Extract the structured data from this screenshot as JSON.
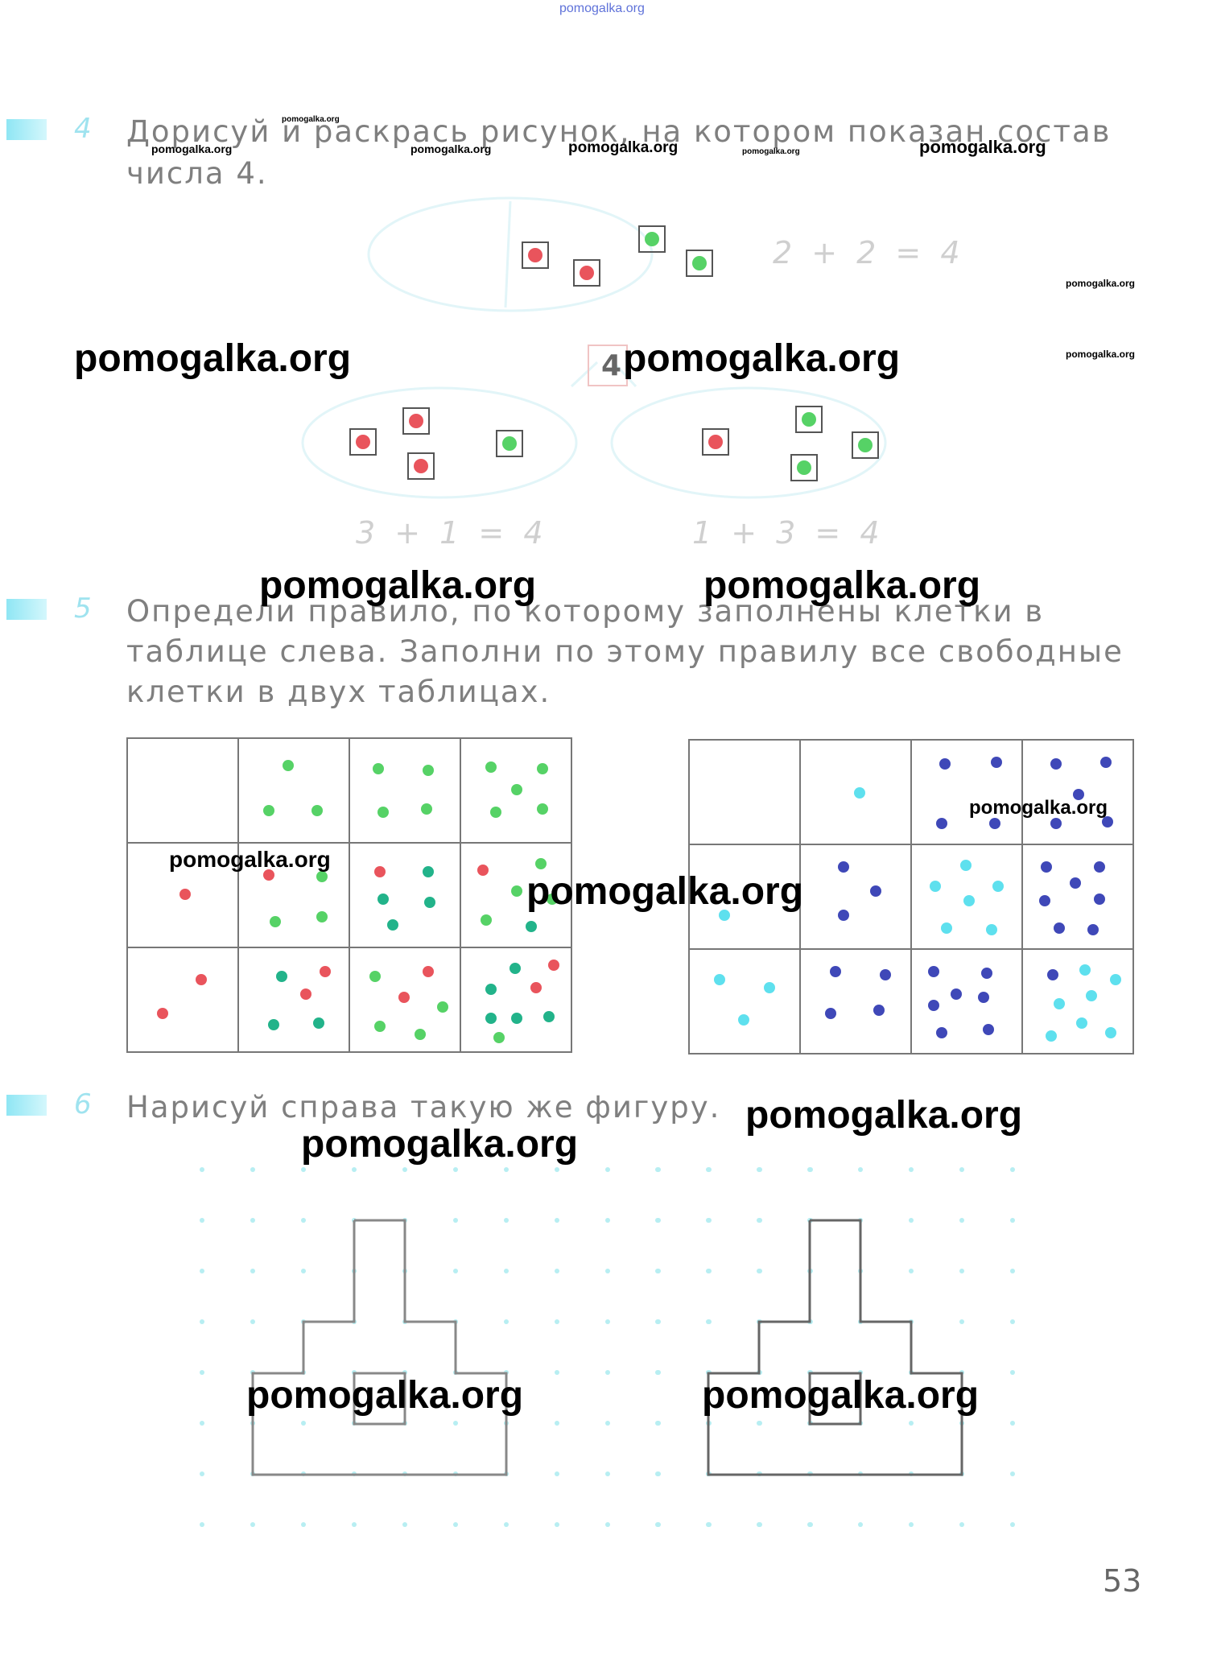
{
  "header": {
    "watermark": "pomogalka.org"
  },
  "task4": {
    "number": "4",
    "line1": "Дорисуй  и  раскрась  рисунок,  на  котором  показан  состав",
    "line2": "числа  4.",
    "center_number": "4",
    "equations": [
      "2 + 2 = 4",
      "3 + 1 = 4",
      "1 + 3 = 4"
    ]
  },
  "task5": {
    "number": "5",
    "line1": "Определи   правило,   по   которому   заполнены   клетки   в",
    "line2": "таблице  слева.  Заполни  по  этому  правилу  все  свободные",
    "line3": "клетки  в  двух  таблицах."
  },
  "task6": {
    "number": "6",
    "text": "Нарисуй  справа  такую  же  фигуру."
  },
  "page_number": "53",
  "watermarks": {
    "w1": "pomogalka.org",
    "w2": "pomogalka.org",
    "w3": "pomogalka.org",
    "w4": "pomogalka.org",
    "w5": "pomogalka.org",
    "w6": "pomogalka.org",
    "w7": "pomogalka.org",
    "w8": "pomogalka.org",
    "w9": "pomogalka.org",
    "w10": "pomogalka.org",
    "w11": "pomogalka.org",
    "w12": "pomogalka.org",
    "w13": "pomogalka.org",
    "w14": "pomogalka.org",
    "w15": "pomogalka.org",
    "w16": "pomogalka.org",
    "w17": "pomogalka.org",
    "w18": "pomogalka.org",
    "w19": "pomogalka.org",
    "w20": "pomogalka.org",
    "w21": "pomogalka.org"
  },
  "colors": {
    "red": "#e9545c",
    "green": "#56d266",
    "teal": "#22b38a",
    "blue": "#3f48b8",
    "cyan": "#5ee0ee"
  }
}
